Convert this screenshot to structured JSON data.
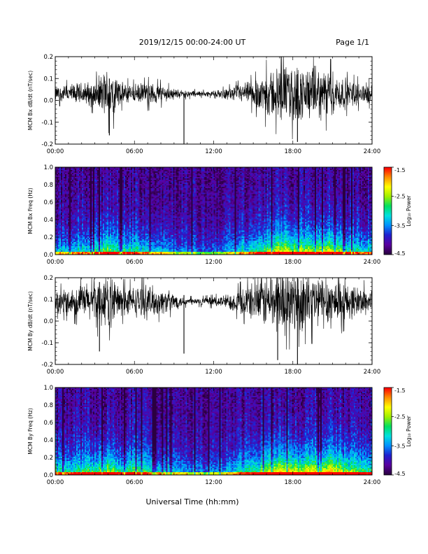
{
  "header": {
    "title": "2019/12/15  00:00-24:00 UT",
    "page_label": "Page 1/1"
  },
  "footer": {
    "xlabel": "Universal Time (hh:mm)"
  },
  "x_tick_labels": [
    "00:00",
    "06:00",
    "12:00",
    "18:00",
    "24:00"
  ],
  "colors": {
    "trace": "#000000",
    "background": "#ffffff",
    "colormap": [
      "#2a0040",
      "#5a00a0",
      "#2020d0",
      "#0090ff",
      "#00e0e0",
      "#00e060",
      "#a0f000",
      "#ffff00",
      "#ff9000",
      "#ff0000"
    ]
  },
  "chart_data": [
    {
      "type": "line",
      "ylabel": "MCM Bx dB/dt (nT/sec)",
      "xlim": [
        0,
        24
      ],
      "ylim": [
        -0.2,
        0.2
      ],
      "y_ticks": [
        "0.2",
        "0.1",
        "0.0",
        "-0.1",
        "-0.2"
      ],
      "baseline": 0.03,
      "envelope": {
        "hours": [
          0,
          1,
          2,
          3,
          4,
          4.5,
          5,
          6,
          7,
          8,
          9,
          9.5,
          10,
          11,
          12,
          13,
          14,
          15,
          16,
          17,
          18,
          19,
          20,
          21,
          22,
          23,
          24
        ],
        "amplitude": [
          0.04,
          0.05,
          0.06,
          0.07,
          0.14,
          0.12,
          0.06,
          0.05,
          0.06,
          0.05,
          0.03,
          0.02,
          0.02,
          0.015,
          0.015,
          0.03,
          0.05,
          0.07,
          0.12,
          0.15,
          0.16,
          0.14,
          0.14,
          0.12,
          0.08,
          0.06,
          0.05
        ]
      },
      "spikes": [
        {
          "hour": 9.75,
          "min": -0.2,
          "max": 0.03
        },
        {
          "hour": 18.35,
          "min": -0.19,
          "max": 0.12
        },
        {
          "hour": 4.1,
          "min": -0.16,
          "max": 0.1
        }
      ]
    },
    {
      "type": "heatmap",
      "ylabel": "MCM Bx Freq (Hz)",
      "xlim": [
        0,
        24
      ],
      "ylim": [
        0,
        1.0
      ],
      "y_ticks": [
        "1.0",
        "0.8",
        "0.6",
        "0.4",
        "0.2",
        "0.0"
      ],
      "colorbar": {
        "label": "Log₁₀ Power",
        "ticks": [
          "-1.5",
          "-2.5",
          "-3.5",
          "-4.5"
        ],
        "range": [
          -4.5,
          -1.5
        ]
      },
      "activity": {
        "hours": [
          0,
          1,
          2,
          3,
          4,
          5,
          6,
          7,
          8,
          9,
          10,
          11,
          12,
          13,
          14,
          15,
          16,
          17,
          18,
          19,
          20,
          21,
          22,
          23,
          24
        ],
        "level": [
          0.45,
          0.45,
          0.5,
          0.55,
          0.7,
          0.55,
          0.6,
          0.5,
          0.45,
          0.35,
          0.3,
          0.25,
          0.25,
          0.35,
          0.45,
          0.55,
          0.7,
          0.85,
          0.8,
          0.75,
          0.8,
          0.85,
          0.65,
          0.55,
          0.5
        ]
      }
    },
    {
      "type": "line",
      "ylabel": "MCM By dB/dt (nT/sec)",
      "xlim": [
        0,
        24
      ],
      "ylim": [
        -0.2,
        0.2
      ],
      "y_ticks": [
        "0.2",
        "0.1",
        "0.0",
        "-0.1",
        "-0.2"
      ],
      "baseline": 0.09,
      "envelope": {
        "hours": [
          0,
          1,
          2,
          3,
          4,
          4.5,
          5,
          6,
          7,
          8,
          9,
          9.5,
          10,
          11,
          12,
          13,
          14,
          15,
          16,
          17,
          18,
          19,
          20,
          21,
          22,
          23,
          24
        ],
        "amplitude": [
          0.06,
          0.07,
          0.09,
          0.12,
          0.14,
          0.13,
          0.08,
          0.08,
          0.09,
          0.07,
          0.05,
          0.03,
          0.02,
          0.02,
          0.025,
          0.04,
          0.07,
          0.1,
          0.15,
          0.17,
          0.17,
          0.15,
          0.15,
          0.14,
          0.1,
          0.08,
          0.07
        ]
      },
      "spikes": [
        {
          "hour": 9.75,
          "min": -0.15,
          "max": 0.12
        },
        {
          "hour": 18.35,
          "min": -0.2,
          "max": 0.2
        },
        {
          "hour": 3.35,
          "min": -0.14,
          "max": 0.18
        },
        {
          "hour": 16.85,
          "min": -0.18,
          "max": 0.2
        }
      ]
    },
    {
      "type": "heatmap",
      "ylabel": "MCM By Freq (Hz)",
      "xlim": [
        0,
        24
      ],
      "ylim": [
        0,
        1.0
      ],
      "y_ticks": [
        "1.0",
        "0.8",
        "0.6",
        "0.4",
        "0.2",
        "0.0"
      ],
      "colorbar": {
        "label": "Log₁₀ Power",
        "ticks": [
          "-1.5",
          "-2.5",
          "-3.5",
          "-4.5"
        ],
        "range": [
          -4.5,
          -1.5
        ]
      },
      "activity": {
        "hours": [
          0,
          1,
          2,
          3,
          4,
          5,
          6,
          7,
          8,
          9,
          10,
          11,
          12,
          13,
          14,
          15,
          16,
          17,
          18,
          19,
          20,
          21,
          22,
          23,
          24
        ],
        "level": [
          0.55,
          0.55,
          0.6,
          0.65,
          0.75,
          0.6,
          0.65,
          0.55,
          0.5,
          0.4,
          0.35,
          0.3,
          0.3,
          0.4,
          0.5,
          0.6,
          0.8,
          0.95,
          0.9,
          0.85,
          0.9,
          0.95,
          0.75,
          0.65,
          0.6
        ]
      }
    }
  ]
}
